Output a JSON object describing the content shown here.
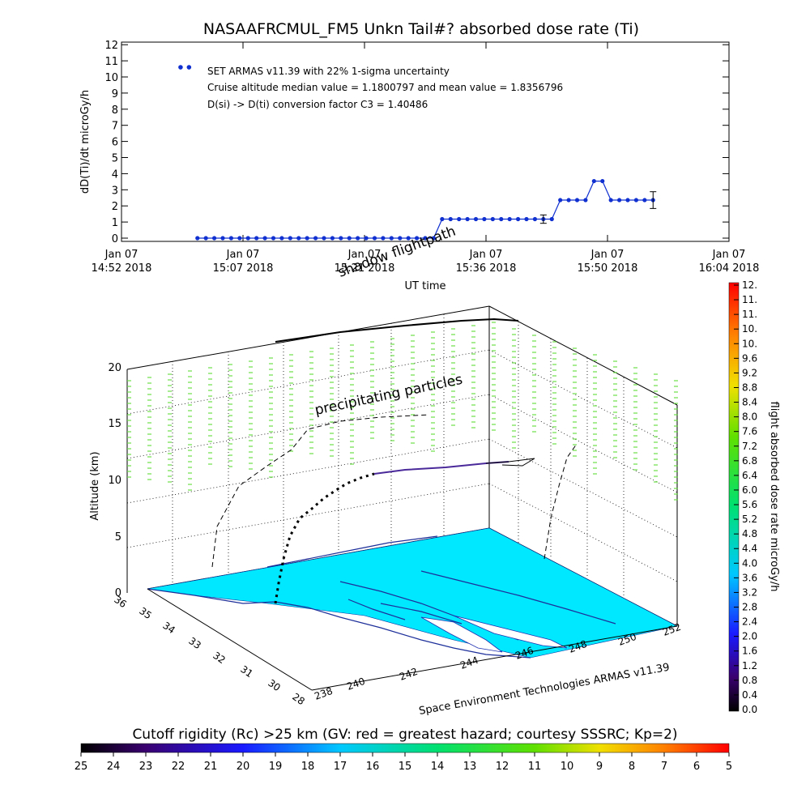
{
  "chart_data": [
    {
      "type": "line",
      "title": "NASAAFRCMUL_FM5 Unkn Tail#? absorbed dose rate (Ti)",
      "ylabel": "dD(Ti)/dt microGy/h",
      "xlabel": "UT time",
      "ylim": [
        0,
        12
      ],
      "y_ticks": [
        "0",
        "1",
        "2",
        "3",
        "4",
        "5",
        "6",
        "7",
        "8",
        "9",
        "10",
        "11",
        "12"
      ],
      "x_ticks": [
        {
          "top": "Jan 07",
          "bottom": "14:52 2018"
        },
        {
          "top": "Jan 07",
          "bottom": "15:07 2018"
        },
        {
          "top": "Jan 07",
          "bottom": "15:21 2018"
        },
        {
          "top": "Jan 07",
          "bottom": "15:36 2018"
        },
        {
          "top": "Jan 07",
          "bottom": "15:50 2018"
        },
        {
          "top": "Jan 07",
          "bottom": "16:04 2018"
        }
      ],
      "annotations": [
        "SET ARMAS v11.39 with 22% 1-sigma uncertainty",
        "Cruise altitude median value = 1.1800797 and mean value = 1.8356796",
        "D(si) -> D(ti) conversion factor C3 = 1.40486"
      ],
      "series": [
        {
          "color": "#1030d0",
          "points": [
            [
              "15:01",
              0
            ],
            [
              "15:02",
              0
            ],
            [
              "15:03",
              0
            ],
            [
              "15:04",
              0
            ],
            [
              "15:05",
              0
            ],
            [
              "15:06",
              0
            ],
            [
              "15:07",
              0
            ],
            [
              "15:08",
              0
            ],
            [
              "15:09",
              0
            ],
            [
              "15:10",
              0
            ],
            [
              "15:11",
              0
            ],
            [
              "15:12",
              0
            ],
            [
              "15:13",
              0
            ],
            [
              "15:14",
              0
            ],
            [
              "15:15",
              0
            ],
            [
              "15:16",
              0
            ],
            [
              "15:17",
              0
            ],
            [
              "15:18",
              0
            ],
            [
              "15:19",
              0
            ],
            [
              "15:20",
              0
            ],
            [
              "15:21",
              0
            ],
            [
              "15:22",
              0
            ],
            [
              "15:23",
              0
            ],
            [
              "15:24",
              0
            ],
            [
              "15:25",
              0
            ],
            [
              "15:26",
              0
            ],
            [
              "15:27",
              0
            ],
            [
              "15:28",
              0
            ],
            [
              "15:29",
              0
            ],
            [
              "15:30",
              1.18
            ],
            [
              "15:31",
              1.18
            ],
            [
              "15:32",
              1.18
            ],
            [
              "15:33",
              1.18
            ],
            [
              "15:34",
              1.18
            ],
            [
              "15:35",
              1.18
            ],
            [
              "15:36",
              1.18
            ],
            [
              "15:37",
              1.18
            ],
            [
              "15:38",
              1.18
            ],
            [
              "15:39",
              1.18
            ],
            [
              "15:40",
              1.18
            ],
            [
              "15:41",
              1.18
            ],
            [
              "15:42",
              1.18
            ],
            [
              "15:43",
              1.18
            ],
            [
              "15:44",
              2.36
            ],
            [
              "15:45",
              2.36
            ],
            [
              "15:46",
              2.36
            ],
            [
              "15:47",
              2.36
            ],
            [
              "15:48",
              3.54
            ],
            [
              "15:49",
              3.54
            ],
            [
              "15:50",
              2.36
            ],
            [
              "15:51",
              2.36
            ],
            [
              "15:52",
              2.36
            ],
            [
              "15:53",
              2.36
            ],
            [
              "15:54",
              2.36
            ],
            [
              "15:55",
              2.36
            ]
          ],
          "outliers": [
            [
              "14:59",
              10.6
            ],
            [
              "15:00",
              10.6
            ]
          ],
          "error_bars": [
            {
              "x": "15:42",
              "y": 1.18,
              "low": 0.92,
              "high": 1.44
            },
            {
              "x": "15:55",
              "y": 2.36,
              "low": 1.84,
              "high": 2.88
            }
          ]
        }
      ]
    },
    {
      "type": "3d-line",
      "title": "",
      "zlabel": "Altitude (km)",
      "z_ticks": [
        "0",
        "5",
        "10",
        "15",
        "20"
      ],
      "y_ticks": [
        "28",
        "30",
        "31",
        "32",
        "33",
        "34",
        "35",
        "36"
      ],
      "x_ticks": [
        "238",
        "240",
        "242",
        "244",
        "246",
        "248",
        "250",
        "252"
      ],
      "annotations": [
        "shadow flightpath",
        "precipitating particles",
        "Space Environment Technologies ARMAS v11.39"
      ],
      "colorbar": {
        "label": "flight absorbed dose rate microGy/h",
        "ticks": [
          "0.0",
          "0.4",
          "0.8",
          "1.2",
          "1.6",
          "2.0",
          "2.4",
          "2.8",
          "3.2",
          "3.6",
          "4.0",
          "4.4",
          "4.8",
          "5.2",
          "5.6",
          "6.0",
          "6.4",
          "6.8",
          "7.2",
          "7.6",
          "8.0",
          "8.4",
          "8.8",
          "9.2",
          "9.6",
          "10.",
          "10.",
          "11.",
          "11.",
          "12."
        ]
      },
      "flight_path": [
        {
          "lon": 243.2,
          "lat": 34.4,
          "alt_km": 0
        },
        {
          "lon": 243.5,
          "lat": 34.4,
          "alt_km": 2.5
        },
        {
          "lon": 243.9,
          "lat": 34.4,
          "alt_km": 5
        },
        {
          "lon": 244.3,
          "lat": 34.4,
          "alt_km": 8
        },
        {
          "lon": 244.8,
          "lat": 34.4,
          "alt_km": 10.5
        },
        {
          "lon": 245.3,
          "lat": 34.4,
          "alt_km": 12
        },
        {
          "lon": 247.5,
          "lat": 34.4,
          "alt_km": 12
        },
        {
          "lon": 250.5,
          "lat": 34.4,
          "alt_km": 12
        },
        {
          "lon": 251.5,
          "lat": 34.4,
          "alt_km": 12
        }
      ]
    },
    {
      "type": "colorbar",
      "title": "Cutoff rigidity (Rc) >25 km (GV: red = greatest hazard; courtesy SSSRC; Kp=2)",
      "ticks": [
        "25",
        "24",
        "23",
        "22",
        "21",
        "20",
        "19",
        "18",
        "17",
        "16",
        "15",
        "14",
        "13",
        "12",
        "11",
        "10",
        "9",
        "8",
        "7",
        "6",
        "5"
      ]
    }
  ],
  "colors": {
    "series": "#1030d0",
    "map_fill": "#00e8ff",
    "particles": "#6ee04a",
    "shadow_path": "#000000"
  }
}
